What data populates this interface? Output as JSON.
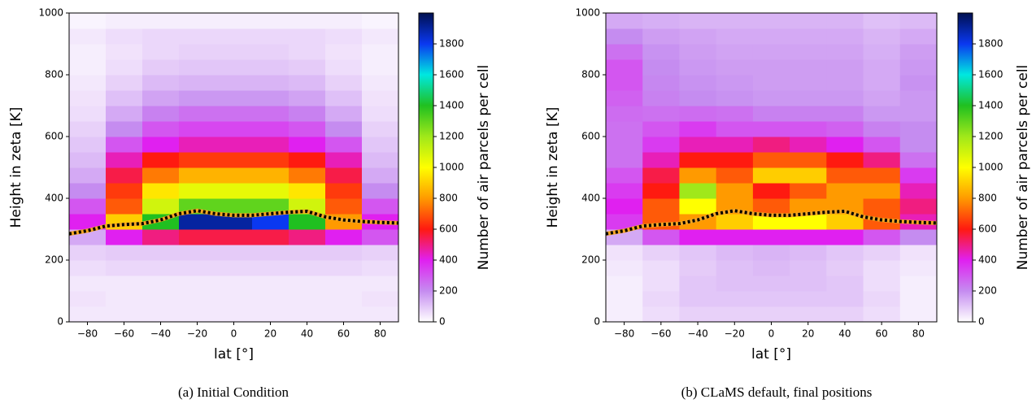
{
  "chart_data": [
    {
      "type": "heatmap",
      "caption": "(a) Initial Condition",
      "x_label": "lat [°]",
      "y_label": "Height in zeta [K]",
      "colorbar_label": "Number of air parcels per cell",
      "xlim": [
        -90,
        90
      ],
      "ylim": [
        0,
        1000
      ],
      "xticks": [
        {
          "value": -80,
          "label": "−80"
        },
        {
          "value": -60,
          "label": "−60"
        },
        {
          "value": -40,
          "label": "−40"
        },
        {
          "value": -20,
          "label": "−20"
        },
        0,
        20,
        40,
        60,
        80
      ],
      "yticks": [
        0,
        200,
        400,
        600,
        800,
        1000
      ],
      "clim": [
        0,
        2000
      ],
      "cticks": [
        0,
        200,
        400,
        600,
        800,
        1000,
        1200,
        1400,
        1600,
        1800
      ],
      "colorscale": [
        [
          0,
          "#ffffff"
        ],
        [
          200,
          "#c58cf0"
        ],
        [
          400,
          "#e020f0"
        ],
        [
          600,
          "#ff1a10"
        ],
        [
          800,
          "#ff9a00"
        ],
        [
          1000,
          "#ffff00"
        ],
        [
          1200,
          "#a0e81a"
        ],
        [
          1400,
          "#20c020"
        ],
        [
          1600,
          "#00e8e0"
        ],
        [
          1800,
          "#0a38f0"
        ],
        [
          2000,
          "#001050"
        ]
      ],
      "xbins": [
        -90,
        -70,
        -50,
        -30,
        -10,
        10,
        30,
        50,
        70,
        90
      ],
      "ybins": [
        0,
        50,
        100,
        150,
        200,
        250,
        300,
        350,
        400,
        450,
        500,
        550,
        600,
        650,
        700,
        750,
        800,
        850,
        900,
        950,
        1000
      ],
      "z": [
        [
          40,
          40,
          40,
          40,
          40,
          40,
          40,
          40,
          40
        ],
        [
          50,
          40,
          40,
          40,
          40,
          40,
          40,
          40,
          50
        ],
        [
          40,
          40,
          40,
          40,
          40,
          40,
          40,
          40,
          40
        ],
        [
          60,
          70,
          70,
          70,
          70,
          70,
          70,
          70,
          60
        ],
        [
          80,
          90,
          90,
          90,
          90,
          90,
          90,
          90,
          80
        ],
        [
          150,
          400,
          500,
          550,
          550,
          550,
          500,
          400,
          300
        ],
        [
          400,
          900,
          1400,
          1900,
          1900,
          1800,
          1400,
          800,
          400
        ],
        [
          300,
          700,
          1100,
          1300,
          1300,
          1300,
          1100,
          700,
          300
        ],
        [
          200,
          650,
          950,
          1050,
          1050,
          1050,
          950,
          650,
          200
        ],
        [
          150,
          550,
          750,
          850,
          850,
          850,
          750,
          550,
          150
        ],
        [
          120,
          450,
          600,
          650,
          650,
          650,
          600,
          450,
          120
        ],
        [
          100,
          300,
          400,
          450,
          450,
          450,
          400,
          300,
          100
        ],
        [
          80,
          200,
          300,
          330,
          330,
          330,
          300,
          200,
          80
        ],
        [
          60,
          150,
          220,
          250,
          250,
          250,
          220,
          150,
          60
        ],
        [
          50,
          110,
          160,
          180,
          180,
          180,
          160,
          110,
          50
        ],
        [
          40,
          80,
          120,
          130,
          130,
          130,
          120,
          80,
          40
        ],
        [
          30,
          60,
          90,
          100,
          100,
          100,
          90,
          60,
          30
        ],
        [
          30,
          50,
          70,
          80,
          80,
          80,
          70,
          50,
          30
        ],
        [
          40,
          60,
          70,
          70,
          70,
          70,
          70,
          60,
          40
        ],
        [
          20,
          30,
          30,
          30,
          30,
          30,
          30,
          30,
          20
        ]
      ],
      "line": {
        "color": "#000000",
        "halo": "#f5a623",
        "x": [
          -90,
          -80,
          -70,
          -60,
          -50,
          -40,
          -30,
          -20,
          -10,
          0,
          10,
          20,
          30,
          40,
          50,
          60,
          70,
          80,
          90
        ],
        "y": [
          285,
          295,
          310,
          315,
          318,
          330,
          350,
          360,
          350,
          345,
          345,
          350,
          355,
          358,
          340,
          330,
          325,
          322,
          320
        ]
      }
    },
    {
      "type": "heatmap",
      "caption": "(b) CLaMS default, final positions",
      "x_label": "lat [°]",
      "y_label": "Height in zeta [K]",
      "colorbar_label": "Number of air parcels per cell",
      "xlim": [
        -90,
        90
      ],
      "ylim": [
        0,
        1000
      ],
      "xticks": [
        {
          "value": -80,
          "label": "−80"
        },
        {
          "value": -60,
          "label": "−60"
        },
        {
          "value": -40,
          "label": "−40"
        },
        {
          "value": -20,
          "label": "−20"
        },
        0,
        20,
        40,
        60,
        80
      ],
      "yticks": [
        0,
        200,
        400,
        600,
        800,
        1000
      ],
      "clim": [
        0,
        2000
      ],
      "cticks": [
        0,
        200,
        400,
        600,
        800,
        1000,
        1200,
        1400,
        1600,
        1800
      ],
      "colorscale": [
        [
          0,
          "#ffffff"
        ],
        [
          200,
          "#c58cf0"
        ],
        [
          400,
          "#e020f0"
        ],
        [
          600,
          "#ff1a10"
        ],
        [
          800,
          "#ff9a00"
        ],
        [
          1000,
          "#ffff00"
        ],
        [
          1200,
          "#a0e81a"
        ],
        [
          1400,
          "#20c020"
        ],
        [
          1600,
          "#00e8e0"
        ],
        [
          1800,
          "#0a38f0"
        ],
        [
          2000,
          "#001050"
        ]
      ],
      "xbins": [
        -90,
        -70,
        -50,
        -30,
        -10,
        10,
        30,
        50,
        70,
        90
      ],
      "ybins": [
        0,
        50,
        100,
        150,
        200,
        250,
        300,
        350,
        400,
        450,
        500,
        550,
        600,
        650,
        700,
        750,
        800,
        850,
        900,
        950,
        1000
      ],
      "z": [
        [
          30,
          60,
          80,
          80,
          80,
          80,
          80,
          60,
          30
        ],
        [
          30,
          70,
          100,
          100,
          100,
          100,
          100,
          70,
          30
        ],
        [
          30,
          60,
          100,
          110,
          110,
          110,
          100,
          60,
          30
        ],
        [
          40,
          60,
          90,
          110,
          120,
          110,
          90,
          60,
          40
        ],
        [
          50,
          80,
          100,
          120,
          130,
          120,
          100,
          80,
          50
        ],
        [
          150,
          300,
          400,
          400,
          400,
          400,
          400,
          300,
          200
        ],
        [
          350,
          700,
          800,
          900,
          1000,
          1000,
          900,
          700,
          450
        ],
        [
          400,
          700,
          1000,
          800,
          700,
          800,
          800,
          700,
          500
        ],
        [
          350,
          600,
          1200,
          800,
          600,
          700,
          800,
          800,
          450
        ],
        [
          300,
          550,
          800,
          700,
          900,
          900,
          700,
          700,
          350
        ],
        [
          250,
          450,
          600,
          600,
          700,
          700,
          600,
          500,
          250
        ],
        [
          250,
          350,
          450,
          450,
          500,
          450,
          400,
          300,
          200
        ],
        [
          250,
          300,
          350,
          300,
          300,
          300,
          280,
          220,
          200
        ],
        [
          260,
          250,
          260,
          250,
          220,
          220,
          220,
          180,
          180
        ],
        [
          280,
          220,
          200,
          190,
          180,
          180,
          180,
          160,
          180
        ],
        [
          300,
          210,
          190,
          180,
          170,
          170,
          170,
          150,
          190
        ],
        [
          300,
          200,
          180,
          170,
          170,
          170,
          170,
          150,
          180
        ],
        [
          250,
          190,
          170,
          160,
          160,
          160,
          160,
          140,
          170
        ],
        [
          200,
          170,
          160,
          150,
          150,
          150,
          150,
          130,
          150
        ],
        [
          150,
          140,
          130,
          130,
          130,
          130,
          130,
          110,
          120
        ]
      ],
      "line": {
        "color": "#000000",
        "halo": "#f5a623",
        "x": [
          -90,
          -80,
          -70,
          -60,
          -50,
          -40,
          -30,
          -20,
          -10,
          0,
          10,
          20,
          30,
          40,
          50,
          60,
          70,
          80,
          90
        ],
        "y": [
          285,
          295,
          310,
          315,
          318,
          330,
          350,
          360,
          350,
          345,
          345,
          350,
          355,
          358,
          340,
          330,
          325,
          322,
          320
        ]
      }
    }
  ]
}
